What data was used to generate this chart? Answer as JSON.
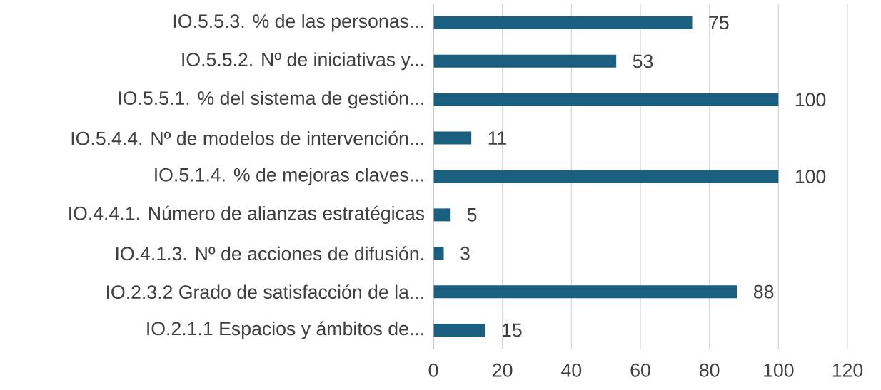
{
  "chart_data": {
    "type": "bar",
    "orientation": "horizontal",
    "categories": [
      "IO.5.5.3. % de las personas...",
      "IO.5.5.2. Nº de iniciativas y...",
      "IO.5.5.1. % del sistema de gestión...",
      "IO.5.4.4. Nº de modelos de intervención...",
      "IO.5.1.4. % de mejoras claves...",
      "IO.4.4.1. Número de alianzas estratégicas",
      "IO.4.1.3. Nº de acciones de difusión.",
      "IO.2.3.2 Grado de satisfacción de la...",
      "IO.2.1.1 Espacios y ámbitos de..."
    ],
    "values": [
      75,
      53,
      100,
      11,
      100,
      5,
      3,
      88,
      15
    ],
    "color": "#1a5e80",
    "xlim": [
      0,
      120
    ],
    "xticks": [
      0,
      20,
      40,
      60,
      80,
      100,
      120
    ],
    "grid": "x",
    "data_labels": true
  }
}
